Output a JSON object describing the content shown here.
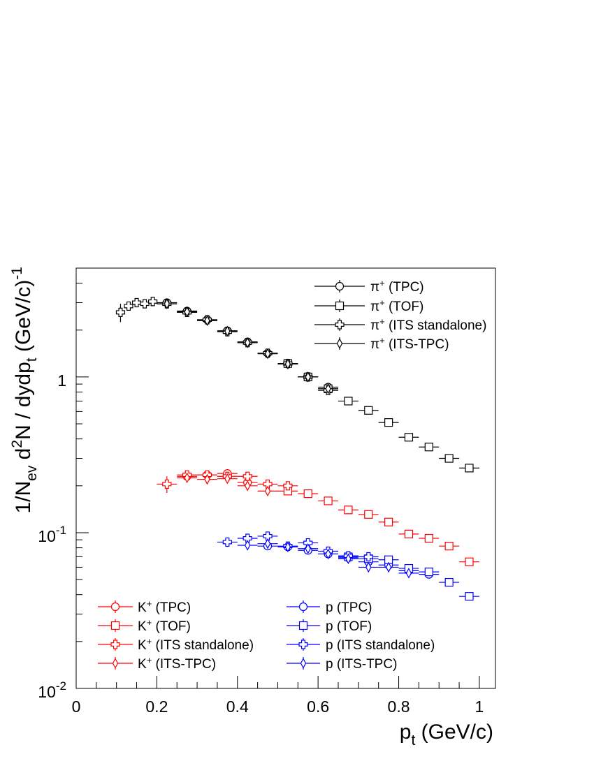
{
  "chart_data": {
    "type": "scatter",
    "x_axis": {
      "title": "p",
      "title_sub": "t",
      "title_rest": " (GeV/c)",
      "range": [
        0,
        1.04
      ],
      "major_ticks": [
        0,
        0.2,
        0.4,
        0.6,
        0.8,
        1
      ],
      "tick_labels": [
        "0",
        "0.2",
        "0.4",
        "0.6",
        "0.8",
        "1"
      ],
      "minor_step": 0.05
    },
    "y_axis": {
      "title_parts": {
        "a": "1/N",
        "a_sub": "ev",
        "b": " d",
        "b_sup": "2",
        "c": "N / dydp",
        "c_sub": "t",
        "d": " (GeV/c)",
        "d_sup": "-1"
      },
      "scale": "log",
      "range": [
        0.01,
        5.0
      ],
      "major_ticks": [
        0.01,
        0.1,
        1
      ],
      "tick_labels": [
        {
          "base": "10",
          "exp": "-2"
        },
        {
          "base": "10",
          "exp": "-1"
        },
        {
          "base": "1",
          "exp": ""
        }
      ]
    },
    "grid": false,
    "colors": {
      "pion": "#000000",
      "kaon": "#ff0000",
      "proton": "#0000ff"
    },
    "series": [
      {
        "name": "π⁺ (TPC)",
        "color": "#000000",
        "marker": "circle",
        "x_err": 0.025,
        "x": [
          0.225,
          0.275,
          0.325,
          0.375,
          0.425,
          0.475,
          0.525,
          0.575,
          0.625
        ],
        "y": [
          3.0,
          2.65,
          2.33,
          1.98,
          1.68,
          1.42,
          1.22,
          1.0,
          0.86
        ],
        "y_err": [
          0.08,
          0.07,
          0.06,
          0.05,
          0.04,
          0.035,
          0.03,
          0.025,
          0.025
        ]
      },
      {
        "name": "π⁺ (TOF)",
        "color": "#000000",
        "marker": "square",
        "x_err": 0.025,
        "x": [
          0.525,
          0.575,
          0.625,
          0.675,
          0.725,
          0.775,
          0.825,
          0.875,
          0.925,
          0.975
        ],
        "y": [
          1.22,
          1.0,
          0.84,
          0.7,
          0.61,
          0.51,
          0.41,
          0.355,
          0.3,
          0.26
        ],
        "y_err": [
          0.03,
          0.025,
          0.02,
          0.015,
          0.012,
          0.01,
          0.008,
          0.007,
          0.006,
          0.005
        ]
      },
      {
        "name": "π⁺ (ITS standalone)",
        "color": "#000000",
        "marker": "cross",
        "x_err": 0.01,
        "x": [
          0.11,
          0.13,
          0.15,
          0.17,
          0.19,
          0.225,
          0.275,
          0.325,
          0.375,
          0.425,
          0.475,
          0.525,
          0.575,
          0.625
        ],
        "y": [
          2.6,
          2.85,
          3.0,
          2.95,
          3.05,
          2.95,
          2.6,
          2.33,
          1.95,
          1.66,
          1.42,
          1.22,
          1.0,
          0.82
        ],
        "y_err": [
          0.35,
          0.15,
          0.12,
          0.1,
          0.1,
          0.1,
          0.08,
          0.07,
          0.06,
          0.05,
          0.04,
          0.035,
          0.03,
          0.03
        ],
        "x_err_list": [
          0.01,
          0.01,
          0.01,
          0.01,
          0.01,
          0.025,
          0.025,
          0.025,
          0.025,
          0.025,
          0.025,
          0.025,
          0.025,
          0.025
        ]
      },
      {
        "name": "π⁺ (ITS-TPC)",
        "color": "#000000",
        "marker": "diamond",
        "x_err": 0.025,
        "x": [
          0.225,
          0.275,
          0.325,
          0.375,
          0.425,
          0.475,
          0.525,
          0.575,
          0.625
        ],
        "y": [
          2.95,
          2.62,
          2.3,
          1.97,
          1.66,
          1.41,
          1.21,
          1.0,
          0.84
        ],
        "y_err": [
          0.08,
          0.07,
          0.06,
          0.05,
          0.04,
          0.035,
          0.03,
          0.025,
          0.025
        ]
      },
      {
        "name": "K⁺ (TPC)",
        "color": "#ff0000",
        "marker": "circle",
        "x_err": 0.025,
        "x": [
          0.275,
          0.325,
          0.375,
          0.425
        ],
        "y": [
          0.23,
          0.235,
          0.24,
          0.21
        ],
        "y_err": [
          0.01,
          0.01,
          0.01,
          0.01
        ]
      },
      {
        "name": "K⁺ (TOF)",
        "color": "#ff0000",
        "marker": "square",
        "x_err": 0.025,
        "x": [
          0.525,
          0.575,
          0.625,
          0.675,
          0.725,
          0.775,
          0.825,
          0.875,
          0.925,
          0.975
        ],
        "y": [
          0.185,
          0.178,
          0.16,
          0.14,
          0.131,
          0.117,
          0.098,
          0.092,
          0.082,
          0.065
        ],
        "y_err": [
          0.005,
          0.004,
          0.004,
          0.003,
          0.003,
          0.003,
          0.002,
          0.002,
          0.002,
          0.002
        ]
      },
      {
        "name": "K⁺ (ITS standalone)",
        "color": "#ff0000",
        "marker": "cross",
        "x_err": 0.025,
        "x": [
          0.225,
          0.275,
          0.325,
          0.375,
          0.425,
          0.475,
          0.525
        ],
        "y": [
          0.205,
          0.235,
          0.235,
          0.23,
          0.23,
          0.205,
          0.2
        ],
        "y_err": [
          0.025,
          0.015,
          0.012,
          0.01,
          0.01,
          0.008,
          0.008
        ]
      },
      {
        "name": "K⁺ (ITS-TPC)",
        "color": "#ff0000",
        "marker": "diamond",
        "x_err": 0.025,
        "x": [
          0.275,
          0.325,
          0.375,
          0.425,
          0.475
        ],
        "y": [
          0.225,
          0.22,
          0.222,
          0.2,
          0.185
        ],
        "y_err": [
          0.008,
          0.008,
          0.008,
          0.008,
          0.008
        ]
      },
      {
        "name": "p (TPC)",
        "color": "#0000ff",
        "marker": "circle",
        "x_err": 0.025,
        "x": [
          0.475,
          0.525,
          0.575,
          0.625,
          0.675,
          0.725,
          0.775,
          0.825,
          0.875
        ],
        "y": [
          0.082,
          0.081,
          0.077,
          0.073,
          0.069,
          0.065,
          0.062,
          0.057,
          0.054
        ],
        "y_err": [
          0.003,
          0.003,
          0.003,
          0.003,
          0.003,
          0.003,
          0.003,
          0.003,
          0.003
        ]
      },
      {
        "name": "p (TOF)",
        "color": "#0000ff",
        "marker": "square",
        "x_err": 0.025,
        "x": [
          0.675,
          0.725,
          0.775,
          0.825,
          0.875,
          0.925,
          0.975
        ],
        "y": [
          0.07,
          0.068,
          0.067,
          0.059,
          0.056,
          0.048,
          0.039
        ],
        "y_err": [
          0.002,
          0.002,
          0.002,
          0.002,
          0.002,
          0.002,
          0.002
        ]
      },
      {
        "name": "p (ITS standalone)",
        "color": "#0000ff",
        "marker": "cross",
        "x_err": 0.025,
        "x": [
          0.375,
          0.425,
          0.475,
          0.525,
          0.575,
          0.625,
          0.675,
          0.725
        ],
        "y": [
          0.087,
          0.092,
          0.095,
          0.082,
          0.086,
          0.076,
          0.071,
          0.07
        ],
        "y_err": [
          0.006,
          0.006,
          0.006,
          0.005,
          0.005,
          0.004,
          0.004,
          0.004
        ]
      },
      {
        "name": "p (ITS-TPC)",
        "color": "#0000ff",
        "marker": "diamond",
        "x_err": 0.025,
        "x": [
          0.425,
          0.475,
          0.525,
          0.575,
          0.625,
          0.675,
          0.725,
          0.775,
          0.825
        ],
        "y": [
          0.083,
          0.085,
          0.081,
          0.079,
          0.073,
          0.068,
          0.06,
          0.06,
          0.055
        ],
        "y_err": [
          0.004,
          0.004,
          0.003,
          0.003,
          0.003,
          0.003,
          0.003,
          0.003,
          0.003
        ]
      }
    ],
    "legends": [
      {
        "placement": "top-right",
        "entries": [
          0,
          1,
          2,
          3
        ]
      },
      {
        "placement": "bottom-left",
        "entries": [
          4,
          5,
          6,
          7
        ]
      },
      {
        "placement": "bottom-center",
        "entries": [
          8,
          9,
          10,
          11
        ]
      }
    ],
    "legend_labels": {
      "pi_tpc": {
        "particle": "π",
        "sup": "+",
        "rest": " (TPC)"
      },
      "pi_tof": {
        "particle": "π",
        "sup": "+",
        "rest": " (TOF)"
      },
      "pi_its": {
        "particle": "π",
        "sup": "+",
        "rest": " (ITS standalone)"
      },
      "pi_itstpc": {
        "particle": "π",
        "sup": "+",
        "rest": " (ITS-TPC)"
      },
      "k_tpc": {
        "particle": "K",
        "sup": "+",
        "rest": " (TPC)"
      },
      "k_tof": {
        "particle": "K",
        "sup": "+",
        "rest": " (TOF)"
      },
      "k_its": {
        "particle": "K",
        "sup": "+",
        "rest": " (ITS standalone)"
      },
      "k_itstpc": {
        "particle": "K",
        "sup": "+",
        "rest": " (ITS-TPC)"
      },
      "p_tpc": {
        "particle": "p",
        "sup": "",
        "rest": " (TPC)"
      },
      "p_tof": {
        "particle": "p",
        "sup": "",
        "rest": " (TOF)"
      },
      "p_its": {
        "particle": "p",
        "sup": "",
        "rest": " (ITS standalone)"
      },
      "p_itstpc": {
        "particle": "p",
        "sup": "",
        "rest": " (ITS-TPC)"
      }
    }
  }
}
